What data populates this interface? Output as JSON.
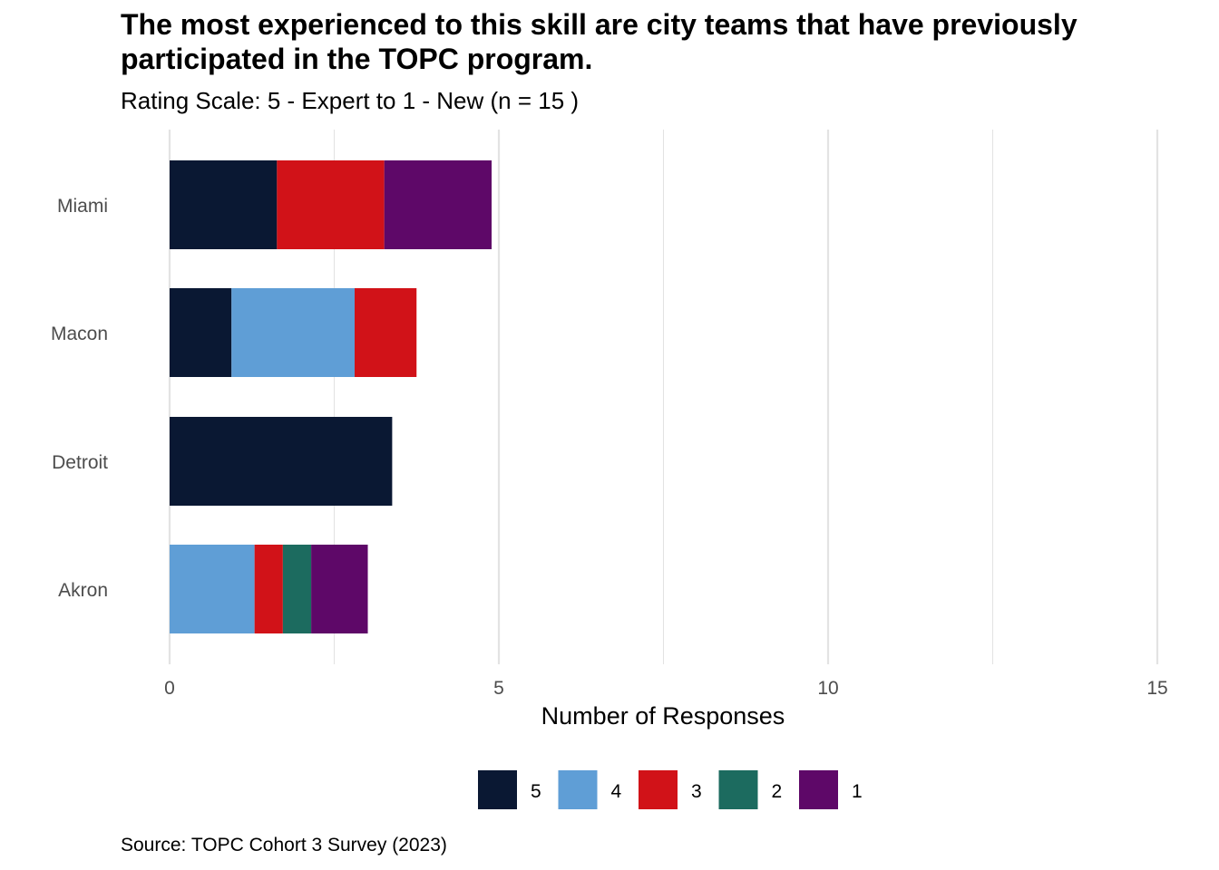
{
  "chart_data": {
    "type": "bar",
    "orientation": "horizontal",
    "stacked": true,
    "title": "The most experienced to this skill are city teams that have previously participated in the TOPC program.",
    "subtitle": "Rating Scale: 5 - Expert to 1 - New (n = 15 )",
    "xlabel": "Number of Responses",
    "ylabel": "",
    "xlim": [
      0,
      15
    ],
    "xticks": [
      0,
      5,
      10,
      15
    ],
    "grid": true,
    "legend_position": "bottom",
    "categories": [
      "Miami",
      "Macon",
      "Detroit",
      "Akron"
    ],
    "series": [
      {
        "name": "5",
        "color": "#0a1833",
        "values": [
          1.63,
          0.94,
          3.38,
          0
        ]
      },
      {
        "name": "4",
        "color": "#5f9ed6",
        "values": [
          0,
          1.87,
          0,
          1.29
        ]
      },
      {
        "name": "3",
        "color": "#d11218",
        "values": [
          1.63,
          0.94,
          0,
          0.43
        ]
      },
      {
        "name": "2",
        "color": "#1c6b5f",
        "values": [
          0,
          0,
          0,
          0.43
        ]
      },
      {
        "name": "1",
        "color": "#5e0868",
        "values": [
          1.63,
          0,
          0,
          0.86
        ]
      }
    ],
    "caption": "Source: TOPC Cohort 3 Survey (2023)"
  },
  "colors": {
    "gridline": "#e3e3e3",
    "tick_text": "#4d4d4d"
  }
}
